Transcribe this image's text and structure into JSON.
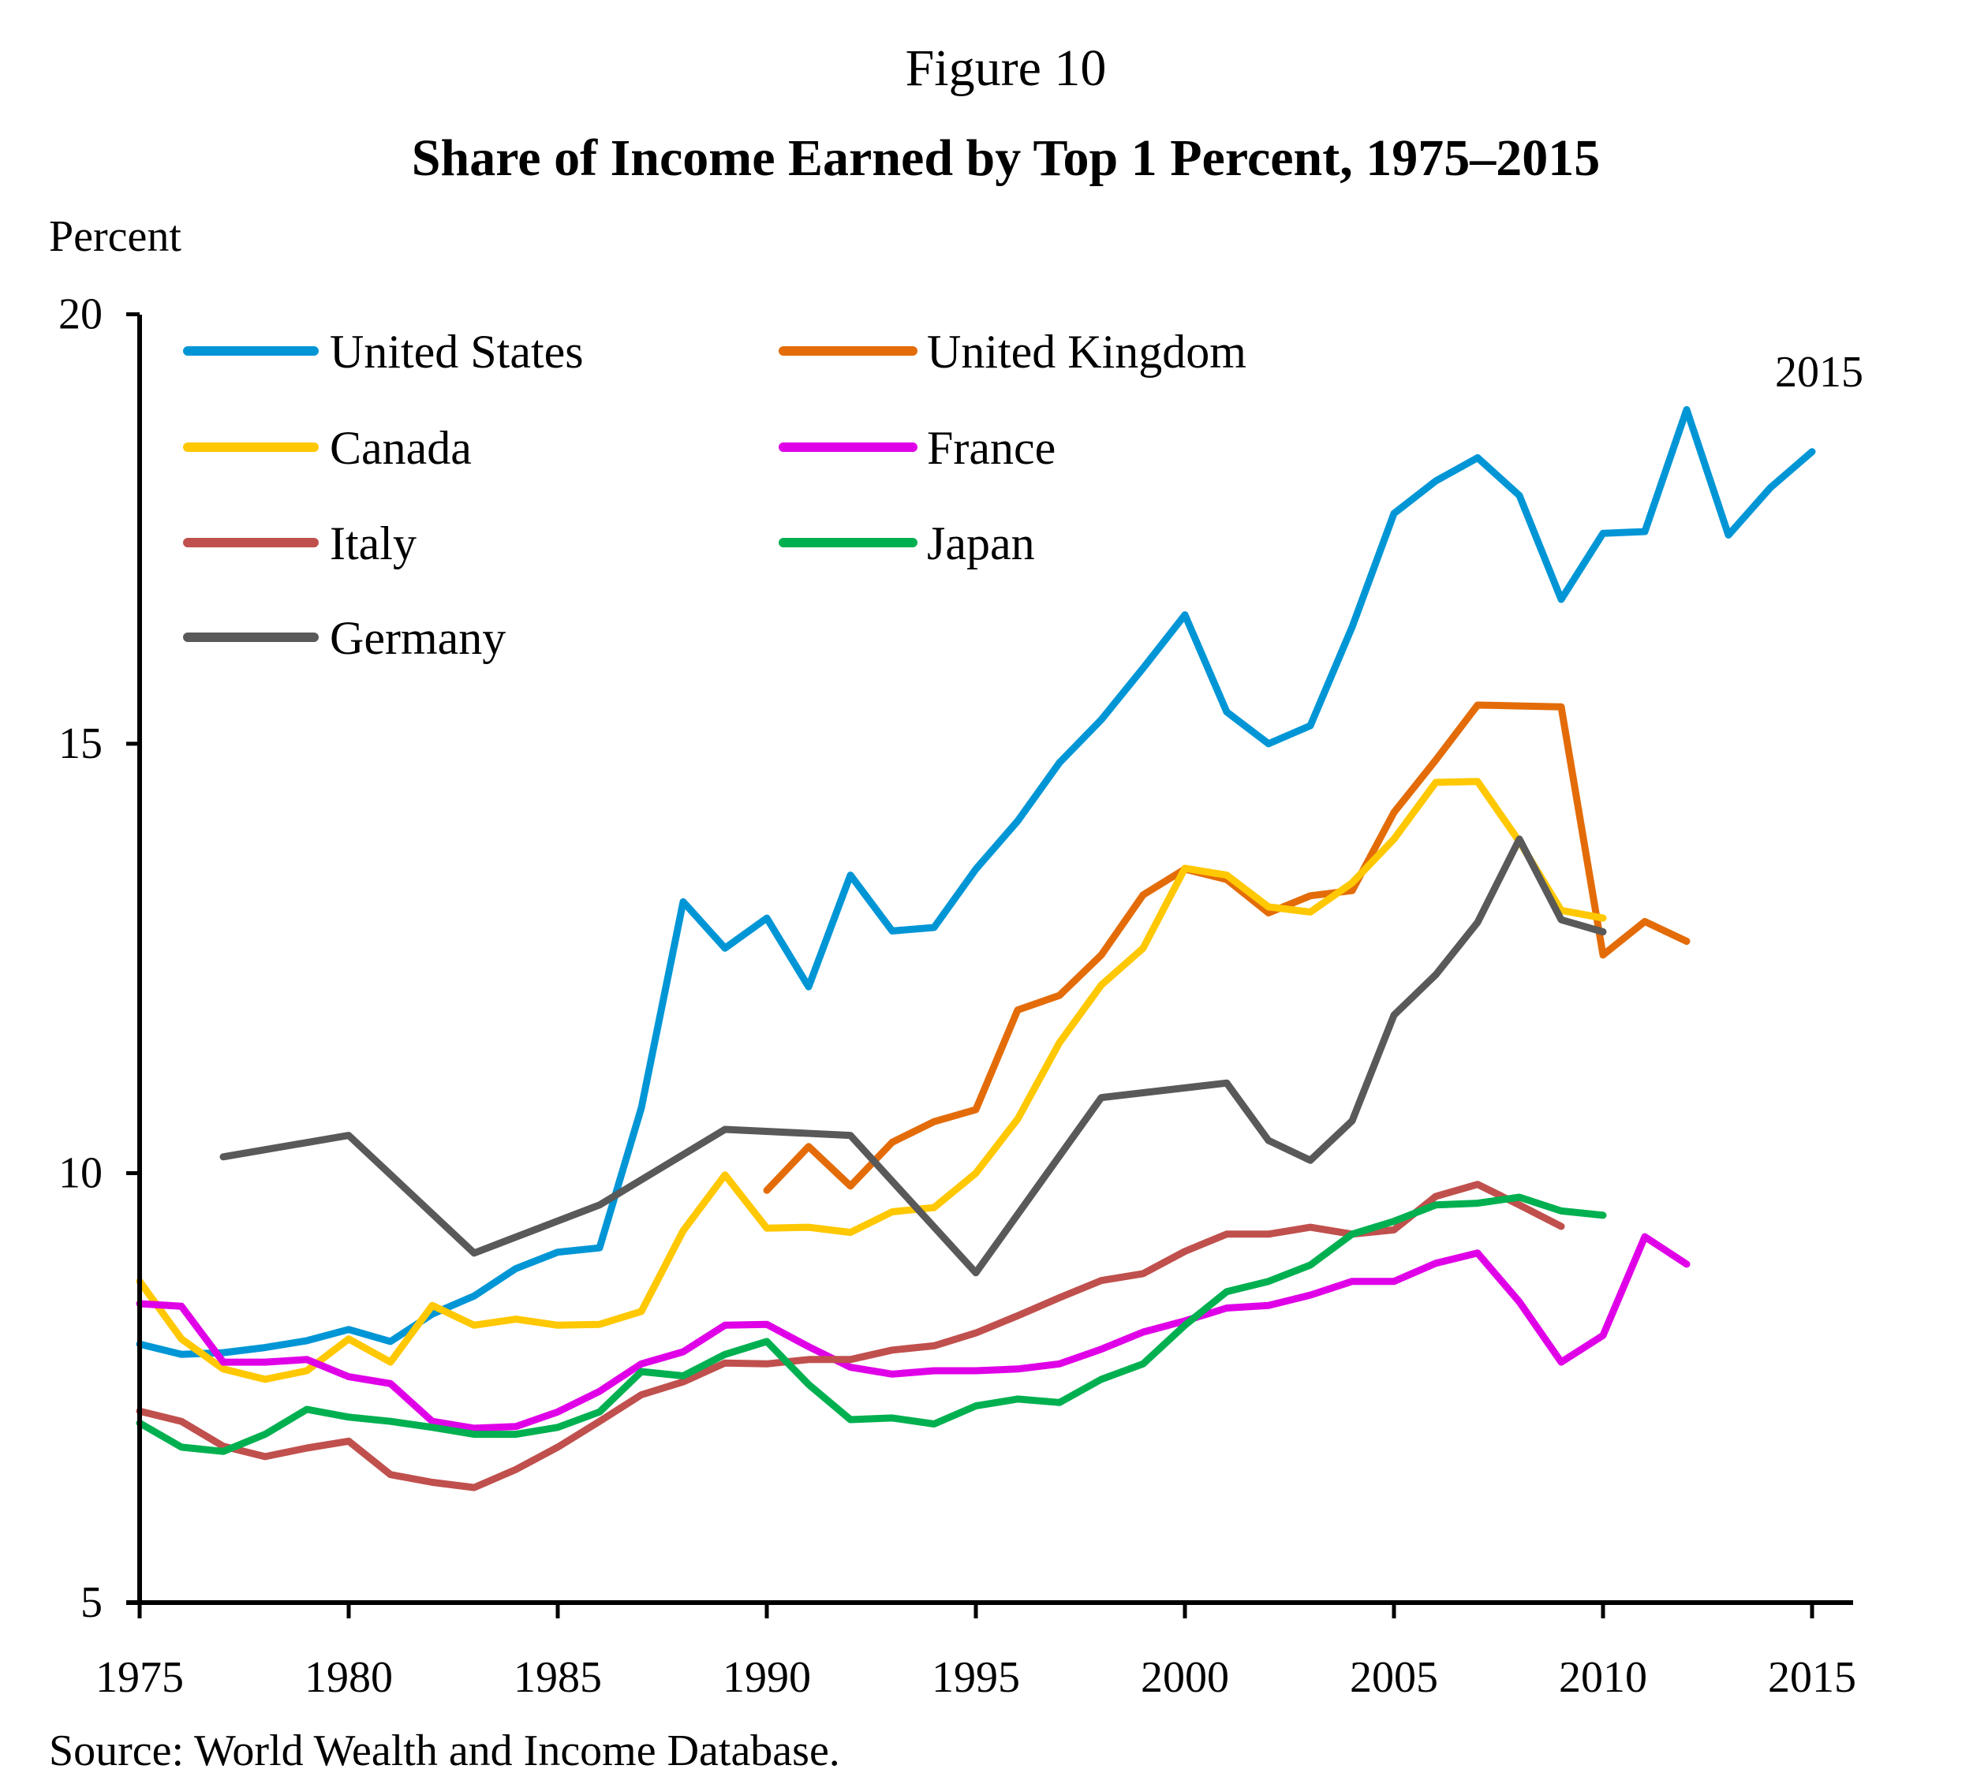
{
  "figure_number": "Figure 10",
  "title": "Share of Income Earned by Top 1 Percent, 1975–2015",
  "source_note": "Source: World Wealth and Income Database.",
  "chart_data": {
    "type": "line",
    "title": "Share of Income Earned by Top 1 Percent, 1975–2015",
    "xlabel": "",
    "ylabel": "Percent",
    "xlim": [
      1975,
      2016
    ],
    "ylim": [
      5,
      20
    ],
    "x_ticks": [
      "1975",
      "1980",
      "1985",
      "1990",
      "1995",
      "2000",
      "2005",
      "2010",
      "2015"
    ],
    "y_ticks": [
      "5",
      "10",
      "15",
      "20"
    ],
    "grid": false,
    "legend_position": "top-left",
    "annotation": "2015",
    "series": [
      {
        "name": "United States",
        "color": "#0096D6",
        "x": [
          1975,
          1976,
          1977,
          1978,
          1979,
          1980,
          1981,
          1982,
          1983,
          1984,
          1985,
          1986,
          1987,
          1988,
          1989,
          1990,
          1991,
          1992,
          1993,
          1994,
          1995,
          1996,
          1997,
          1998,
          1999,
          2000,
          2001,
          2002,
          2003,
          2004,
          2005,
          2006,
          2007,
          2008,
          2009,
          2010,
          2011,
          2012,
          2013,
          2014,
          2015
        ],
        "values": [
          8.01,
          7.89,
          7.91,
          7.97,
          8.05,
          8.18,
          8.04,
          8.36,
          8.57,
          8.89,
          9.08,
          9.13,
          10.76,
          13.16,
          12.62,
          12.97,
          12.17,
          13.47,
          12.82,
          12.86,
          13.54,
          14.1,
          14.78,
          15.28,
          15.88,
          16.5,
          15.37,
          15.0,
          15.21,
          16.36,
          17.68,
          18.06,
          18.33,
          17.89,
          16.68,
          17.45,
          17.47,
          18.89,
          17.43,
          17.98,
          18.4
        ]
      },
      {
        "name": "United Kingdom",
        "color": "#E36C09",
        "x": [
          1990,
          1991,
          1992,
          1993,
          1994,
          1995,
          1996,
          1997,
          1998,
          1999,
          2000,
          2001,
          2002,
          2003,
          2004,
          2005,
          2006,
          2007,
          2008,
          2009,
          2010,
          2011,
          2012
        ],
        "values": [
          9.8,
          10.31,
          9.85,
          10.36,
          10.6,
          10.74,
          11.9,
          12.07,
          12.54,
          13.24,
          13.54,
          13.42,
          13.03,
          13.23,
          13.29,
          14.2,
          14.81,
          15.45,
          15.44,
          15.43,
          12.54,
          12.93,
          12.7
        ]
      },
      {
        "name": "Canada",
        "color": "#FFC800",
        "x": [
          1975,
          1976,
          1977,
          1978,
          1979,
          1980,
          1981,
          1982,
          1983,
          1984,
          1985,
          1986,
          1987,
          1988,
          1989,
          1990,
          1991,
          1992,
          1993,
          1994,
          1995,
          1996,
          1997,
          1998,
          1999,
          2000,
          2001,
          2002,
          2003,
          2004,
          2005,
          2006,
          2007,
          2008,
          2009,
          2010
        ],
        "values": [
          8.74,
          8.07,
          7.72,
          7.6,
          7.7,
          8.07,
          7.8,
          8.46,
          8.23,
          8.3,
          8.23,
          8.24,
          8.39,
          9.33,
          9.98,
          9.36,
          9.37,
          9.31,
          9.55,
          9.6,
          10.0,
          10.63,
          11.52,
          12.19,
          12.62,
          13.55,
          13.47,
          13.1,
          13.04,
          13.38,
          13.89,
          14.55,
          14.56,
          13.86,
          13.06,
          12.97
        ]
      },
      {
        "name": "France",
        "color": "#E000E8",
        "x": [
          1975,
          1976,
          1977,
          1978,
          1979,
          1980,
          1981,
          1982,
          1983,
          1984,
          1985,
          1986,
          1987,
          1988,
          1989,
          1990,
          1991,
          1992,
          1993,
          1994,
          1995,
          1996,
          1997,
          1998,
          1999,
          2000,
          2001,
          2002,
          2003,
          2004,
          2005,
          2006,
          2007,
          2008,
          2009,
          2010,
          2011,
          2012
        ],
        "values": [
          8.48,
          8.45,
          7.8,
          7.8,
          7.83,
          7.63,
          7.55,
          7.11,
          7.03,
          7.05,
          7.22,
          7.46,
          7.78,
          7.92,
          8.23,
          8.24,
          7.98,
          7.74,
          7.66,
          7.7,
          7.7,
          7.72,
          7.78,
          7.95,
          8.15,
          8.28,
          8.43,
          8.46,
          8.58,
          8.74,
          8.74,
          8.95,
          9.07,
          8.5,
          7.8,
          8.11,
          9.26,
          8.94
        ]
      },
      {
        "name": "Italy",
        "color": "#C0504D",
        "x": [
          1975,
          1976,
          1977,
          1978,
          1979,
          1980,
          1981,
          1982,
          1983,
          1984,
          1985,
          1986,
          1987,
          1988,
          1989,
          1990,
          1991,
          1992,
          1993,
          1994,
          1995,
          1996,
          1997,
          1998,
          1999,
          2000,
          2001,
          2002,
          2003,
          2004,
          2005,
          2006,
          2007,
          2008,
          2009
        ],
        "values": [
          7.23,
          7.11,
          6.82,
          6.7,
          6.8,
          6.88,
          6.49,
          6.4,
          6.34,
          6.55,
          6.81,
          7.11,
          7.42,
          7.57,
          7.79,
          7.78,
          7.83,
          7.83,
          7.94,
          7.99,
          8.14,
          8.34,
          8.55,
          8.75,
          8.83,
          9.09,
          9.29,
          9.29,
          9.37,
          9.29,
          9.34,
          9.73,
          9.87,
          9.63,
          9.38
        ]
      },
      {
        "name": "Japan",
        "color": "#00B050",
        "x": [
          1975,
          1976,
          1977,
          1978,
          1979,
          1980,
          1981,
          1982,
          1983,
          1984,
          1985,
          1986,
          1987,
          1988,
          1989,
          1990,
          1991,
          1992,
          1993,
          1994,
          1995,
          1996,
          1997,
          1998,
          1999,
          2000,
          2001,
          2002,
          2003,
          2004,
          2005,
          2006,
          2007,
          2008,
          2009,
          2010
        ],
        "values": [
          7.09,
          6.81,
          6.76,
          6.96,
          7.25,
          7.16,
          7.11,
          7.04,
          6.96,
          6.96,
          7.04,
          7.22,
          7.69,
          7.64,
          7.89,
          8.04,
          7.54,
          7.13,
          7.15,
          7.08,
          7.29,
          7.37,
          7.33,
          7.6,
          7.78,
          8.23,
          8.62,
          8.74,
          8.93,
          9.29,
          9.44,
          9.63,
          9.65,
          9.72,
          9.56,
          9.51
        ]
      },
      {
        "name": "Germany",
        "color": "#595959",
        "x": [
          1977,
          1980,
          1983,
          1986,
          1989,
          1992,
          1995,
          1998,
          2001,
          2002,
          2003,
          2004,
          2005,
          2006,
          2007,
          2008,
          2009,
          2010
        ],
        "values": [
          10.19,
          10.44,
          9.07,
          9.63,
          10.51,
          10.44,
          8.84,
          10.88,
          11.05,
          10.38,
          10.15,
          10.61,
          11.84,
          12.31,
          12.92,
          13.89,
          12.95,
          12.81
        ]
      }
    ]
  }
}
